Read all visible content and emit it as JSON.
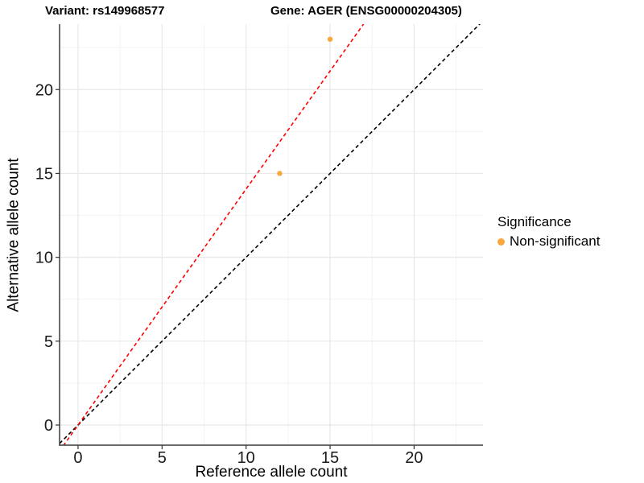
{
  "chart_data": {
    "type": "scatter",
    "title_left": "Variant: rs149968577",
    "title_right": "Gene: AGER (ENSG00000204305)",
    "xlabel": "Reference allele count",
    "ylabel": "Alternative allele count",
    "xlim": [
      -1.1,
      24.1
    ],
    "ylim": [
      -1.2,
      23.9
    ],
    "xticks": [
      0,
      5,
      10,
      15,
      20
    ],
    "yticks": [
      0,
      5,
      10,
      15,
      20
    ],
    "xticks_minor": [
      2.5,
      7.5,
      12.5,
      17.5,
      22.5
    ],
    "yticks_minor": [
      2.5,
      7.5,
      12.5,
      17.5,
      22.5
    ],
    "grid": true,
    "series": [
      {
        "name": "Non-significant",
        "color": "#F9A63C",
        "points": [
          {
            "x": 12,
            "y": 15
          },
          {
            "x": 15,
            "y": 23
          }
        ]
      }
    ],
    "lines": [
      {
        "name": "identity-line",
        "slope": 1.0,
        "intercept": 0,
        "color": "#000000",
        "style": "dashed"
      },
      {
        "name": "allelic-fit-line",
        "slope": 1.407,
        "intercept": 0,
        "color": "#FF0000",
        "style": "dashed"
      }
    ],
    "legend": {
      "title": "Significance",
      "position": "right",
      "items": [
        {
          "label": "Non-significant",
          "color": "#F9A63C"
        }
      ]
    }
  },
  "colors": {
    "background": "#FFFFFF",
    "axis_line": "#3C3C3C",
    "tick_mark": "#333333",
    "tick_text": "#1A1A1A",
    "grid_major": "#E8E8E8",
    "grid_minor": "#F3F3F3",
    "point": "#F9A63C",
    "fit_line": "#FF0000",
    "identity_line": "#000000"
  }
}
